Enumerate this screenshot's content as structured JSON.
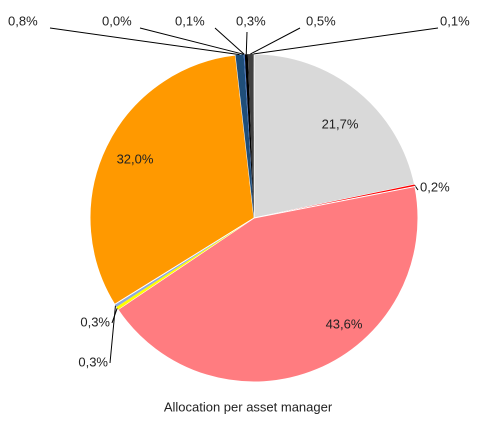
{
  "chart_data": {
    "type": "pie",
    "title": "Allocation per asset manager",
    "values": [
      21.7,
      0.2,
      43.6,
      0.3,
      0.3,
      32.0,
      0.8,
      0.0,
      0.1,
      0.3,
      0.5,
      0.1
    ],
    "value_labels": [
      "21,7%",
      "0,2%",
      "43,6%",
      "0,3%",
      "0,3%",
      "32,0%",
      "0,8%",
      "0,0%",
      "0,1%",
      "0,3%",
      "0,5%",
      "0,1%"
    ],
    "colors": [
      "#d9d9d9",
      "#ff0000",
      "#ff7c80",
      "#ffff00",
      "#8ea9db",
      "#ff9900",
      "#1f4e79",
      "#2f5597",
      "#4472c4",
      "#000000",
      "#404040",
      "#7f7f7f"
    ]
  }
}
